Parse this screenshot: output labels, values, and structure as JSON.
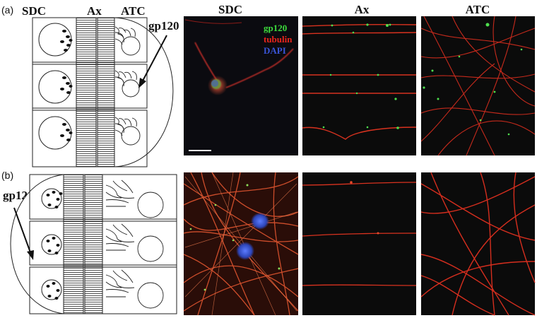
{
  "figure": {
    "panel_a_label": "(a)",
    "panel_b_label": "(b)",
    "diagram_labels": {
      "sdc": "SDC",
      "ax": "Ax",
      "atc": "ATC",
      "gp120": "gp120"
    },
    "column_headers": {
      "sdc": "SDC",
      "ax": "Ax",
      "atc": "ATC"
    },
    "stain_legend": {
      "gp120": "gp120",
      "tubulin": "tubulin",
      "dapi": "DAPI"
    },
    "colors": {
      "gp120": "#3ddc3d",
      "tubulin": "#e8251c",
      "dapi": "#3a55d8",
      "background": "#0b0b0b"
    }
  }
}
